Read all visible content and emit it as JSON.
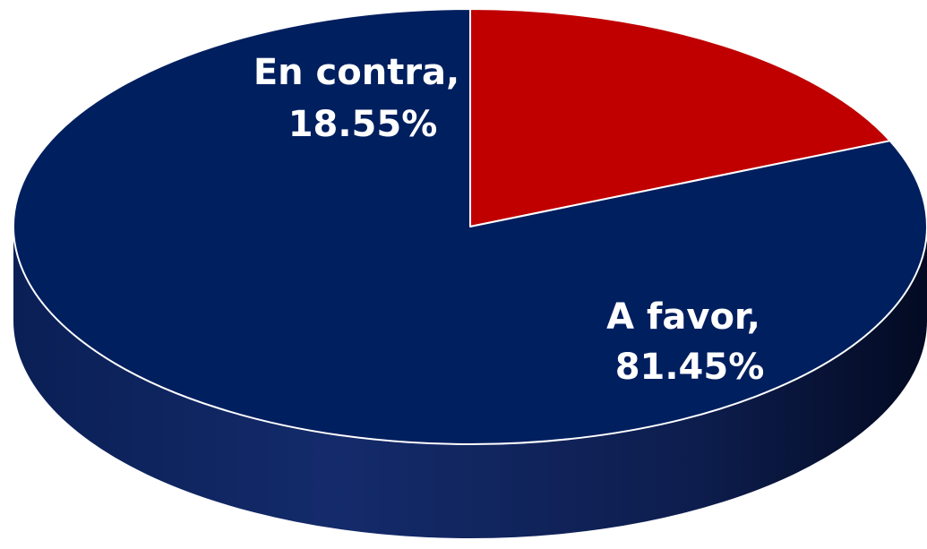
{
  "chart_data": {
    "type": "pie",
    "style": "3d",
    "categories": [
      "En contra",
      "A favor"
    ],
    "values": [
      18.55,
      81.45
    ],
    "value_labels": [
      "18.55%",
      "81.45%"
    ],
    "label_names": [
      "En contra,",
      "A favor,"
    ],
    "colors": [
      "#c00000",
      "#001f5f"
    ],
    "label_color": "#ffffff",
    "legend": "none",
    "title": ""
  }
}
